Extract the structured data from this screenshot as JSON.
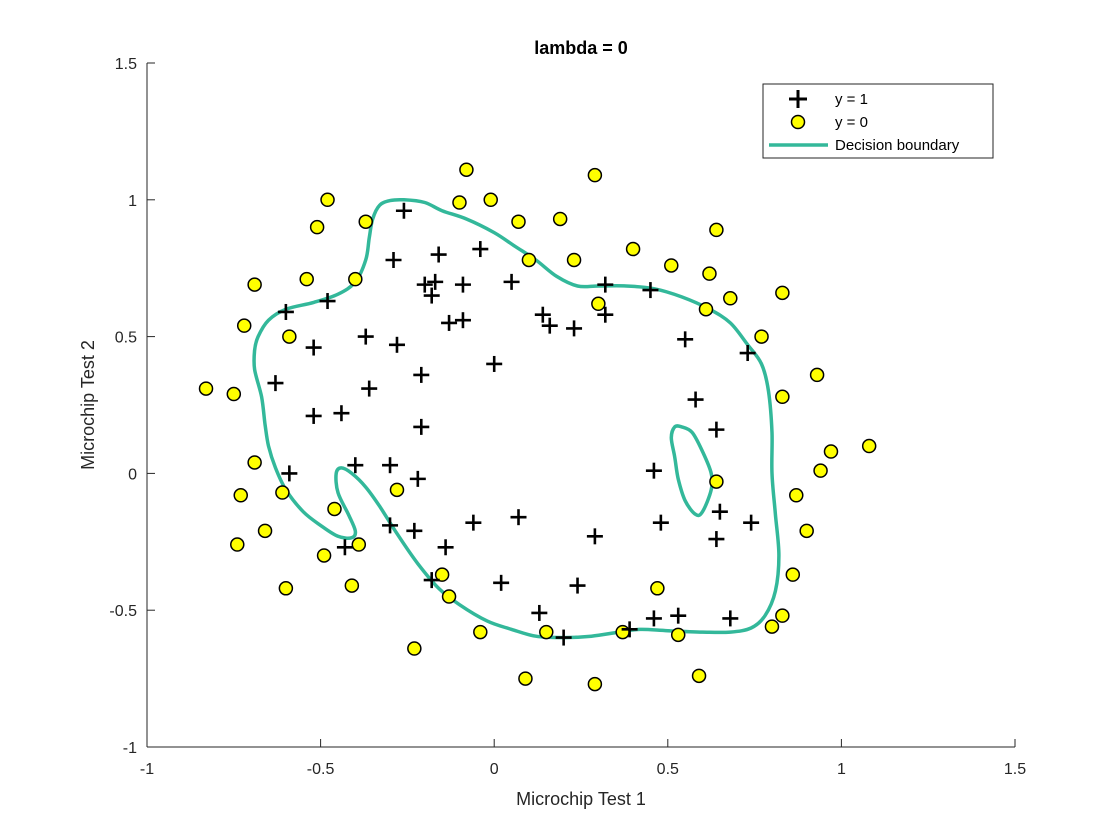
{
  "chart_data": {
    "type": "scatter",
    "title": "lambda = 0",
    "xlabel": "Microchip Test 1",
    "ylabel": "Microchip Test 2",
    "xlim": [
      -1,
      1.5
    ],
    "ylim": [
      -1,
      1.5
    ],
    "xticks": [
      -1,
      -0.5,
      0,
      0.5,
      1,
      1.5
    ],
    "yticks": [
      -1,
      -0.5,
      0,
      0.5,
      1,
      1.5
    ],
    "xtick_labels": [
      "-1",
      "-0.5",
      "0",
      "0.5",
      "1",
      "1.5"
    ],
    "ytick_labels": [
      "-1",
      "-0.5",
      "0",
      "0.5",
      "1",
      "1.5"
    ],
    "grid": false,
    "legend_position": "top-right",
    "legend": [
      "y = 1",
      "y = 0",
      "Decision boundary"
    ],
    "colors": {
      "positive": "#000000",
      "negative": "#ffff00",
      "negative_edge": "#000000",
      "boundary": "#33b89a"
    },
    "series": [
      {
        "name": "y = 1",
        "marker": "plus",
        "points": [
          [
            -0.26,
            0.96
          ],
          [
            -0.29,
            0.78
          ],
          [
            -0.16,
            0.8
          ],
          [
            -0.04,
            0.82
          ],
          [
            -0.2,
            0.69
          ],
          [
            -0.17,
            0.7
          ],
          [
            -0.18,
            0.65
          ],
          [
            -0.09,
            0.69
          ],
          [
            0.05,
            0.7
          ],
          [
            -0.6,
            0.59
          ],
          [
            -0.48,
            0.63
          ],
          [
            -0.13,
            0.55
          ],
          [
            -0.09,
            0.56
          ],
          [
            0.14,
            0.58
          ],
          [
            0.16,
            0.54
          ],
          [
            0.23,
            0.53
          ],
          [
            0.32,
            0.69
          ],
          [
            0.32,
            0.58
          ],
          [
            0.45,
            0.67
          ],
          [
            -0.37,
            0.5
          ],
          [
            -0.28,
            0.47
          ],
          [
            -0.52,
            0.46
          ],
          [
            0.55,
            0.49
          ],
          [
            0.73,
            0.44
          ],
          [
            -0.63,
            0.33
          ],
          [
            -0.21,
            0.36
          ],
          [
            0.0,
            0.4
          ],
          [
            -0.36,
            0.31
          ],
          [
            -0.52,
            0.21
          ],
          [
            -0.44,
            0.22
          ],
          [
            -0.21,
            0.17
          ],
          [
            0.58,
            0.27
          ],
          [
            0.64,
            0.16
          ],
          [
            -0.59,
            0.0
          ],
          [
            -0.4,
            0.03
          ],
          [
            -0.3,
            0.03
          ],
          [
            -0.22,
            -0.02
          ],
          [
            0.46,
            0.01
          ],
          [
            -0.3,
            -0.19
          ],
          [
            -0.23,
            -0.21
          ],
          [
            -0.06,
            -0.18
          ],
          [
            0.07,
            -0.16
          ],
          [
            0.48,
            -0.18
          ],
          [
            0.65,
            -0.14
          ],
          [
            0.74,
            -0.18
          ],
          [
            -0.14,
            -0.27
          ],
          [
            0.29,
            -0.23
          ],
          [
            0.64,
            -0.24
          ],
          [
            -0.43,
            -0.27
          ],
          [
            -0.18,
            -0.39
          ],
          [
            0.02,
            -0.4
          ],
          [
            0.24,
            -0.41
          ],
          [
            0.13,
            -0.51
          ],
          [
            0.46,
            -0.53
          ],
          [
            0.53,
            -0.52
          ],
          [
            0.68,
            -0.53
          ],
          [
            0.39,
            -0.57
          ],
          [
            0.2,
            -0.6
          ]
        ]
      },
      {
        "name": "y = 0",
        "marker": "circle",
        "points": [
          [
            -0.08,
            1.11
          ],
          [
            0.29,
            1.09
          ],
          [
            -0.48,
            1.0
          ],
          [
            -0.1,
            0.99
          ],
          [
            -0.01,
            1.0
          ],
          [
            -0.51,
            0.9
          ],
          [
            -0.37,
            0.92
          ],
          [
            0.07,
            0.92
          ],
          [
            0.19,
            0.93
          ],
          [
            0.64,
            0.89
          ],
          [
            0.4,
            0.82
          ],
          [
            0.1,
            0.78
          ],
          [
            0.23,
            0.78
          ],
          [
            0.51,
            0.76
          ],
          [
            0.62,
            0.73
          ],
          [
            -0.54,
            0.71
          ],
          [
            -0.4,
            0.71
          ],
          [
            -0.69,
            0.69
          ],
          [
            0.3,
            0.62
          ],
          [
            0.61,
            0.6
          ],
          [
            0.68,
            0.64
          ],
          [
            0.83,
            0.66
          ],
          [
            -0.72,
            0.54
          ],
          [
            -0.59,
            0.5
          ],
          [
            0.77,
            0.5
          ],
          [
            -0.83,
            0.31
          ],
          [
            -0.75,
            0.29
          ],
          [
            0.93,
            0.36
          ],
          [
            0.83,
            0.28
          ],
          [
            0.97,
            0.08
          ],
          [
            1.08,
            0.1
          ],
          [
            -0.69,
            0.04
          ],
          [
            0.94,
            0.01
          ],
          [
            -0.73,
            -0.08
          ],
          [
            -0.61,
            -0.07
          ],
          [
            -0.28,
            -0.06
          ],
          [
            0.64,
            -0.03
          ],
          [
            0.87,
            -0.08
          ],
          [
            -0.46,
            -0.13
          ],
          [
            0.9,
            -0.21
          ],
          [
            -0.66,
            -0.21
          ],
          [
            -0.74,
            -0.26
          ],
          [
            -0.49,
            -0.3
          ],
          [
            -0.39,
            -0.26
          ],
          [
            -0.15,
            -0.37
          ],
          [
            0.86,
            -0.37
          ],
          [
            -0.6,
            -0.42
          ],
          [
            -0.41,
            -0.41
          ],
          [
            -0.13,
            -0.45
          ],
          [
            0.47,
            -0.42
          ],
          [
            0.83,
            -0.52
          ],
          [
            0.8,
            -0.56
          ],
          [
            -0.04,
            -0.58
          ],
          [
            0.15,
            -0.58
          ],
          [
            0.37,
            -0.58
          ],
          [
            0.53,
            -0.59
          ],
          [
            -0.23,
            -0.64
          ],
          [
            0.59,
            -0.74
          ],
          [
            0.09,
            -0.75
          ],
          [
            0.29,
            -0.77
          ]
        ]
      },
      {
        "name": "Decision boundary",
        "marker": "line",
        "curves": [
          [
            [
              -0.35,
              0.93
            ],
            [
              -0.33,
              0.98
            ],
            [
              -0.3,
              0.997
            ],
            [
              -0.26,
              1.0
            ],
            [
              -0.2,
              0.99
            ],
            [
              -0.15,
              0.96
            ],
            [
              -0.08,
              0.93
            ],
            [
              0.0,
              0.88
            ],
            [
              0.06,
              0.83
            ],
            [
              0.12,
              0.78
            ],
            [
              0.18,
              0.72
            ],
            [
              0.24,
              0.685
            ],
            [
              0.3,
              0.685
            ],
            [
              0.38,
              0.685
            ],
            [
              0.46,
              0.675
            ],
            [
              0.54,
              0.645
            ],
            [
              0.62,
              0.6
            ],
            [
              0.68,
              0.55
            ],
            [
              0.73,
              0.47
            ],
            [
              0.77,
              0.4
            ],
            [
              0.79,
              0.3
            ],
            [
              0.8,
              0.15
            ],
            [
              0.8,
              0.0
            ],
            [
              0.81,
              -0.15
            ],
            [
              0.82,
              -0.3
            ],
            [
              0.81,
              -0.43
            ],
            [
              0.78,
              -0.52
            ],
            [
              0.74,
              -0.565
            ],
            [
              0.68,
              -0.58
            ],
            [
              0.6,
              -0.58
            ],
            [
              0.5,
              -0.575
            ],
            [
              0.42,
              -0.57
            ],
            [
              0.36,
              -0.58
            ],
            [
              0.28,
              -0.595
            ],
            [
              0.2,
              -0.6
            ],
            [
              0.12,
              -0.595
            ],
            [
              0.05,
              -0.57
            ],
            [
              -0.02,
              -0.54
            ],
            [
              -0.1,
              -0.48
            ],
            [
              -0.16,
              -0.42
            ],
            [
              -0.22,
              -0.33
            ],
            [
              -0.28,
              -0.22
            ],
            [
              -0.33,
              -0.12
            ],
            [
              -0.37,
              -0.05
            ],
            [
              -0.41,
              0.0
            ],
            [
              -0.44,
              0.02
            ],
            [
              -0.455,
              0.0
            ],
            [
              -0.45,
              -0.07
            ],
            [
              -0.42,
              -0.15
            ],
            [
              -0.4,
              -0.21
            ],
            [
              -0.41,
              -0.235
            ],
            [
              -0.45,
              -0.23
            ],
            [
              -0.5,
              -0.19
            ],
            [
              -0.55,
              -0.14
            ],
            [
              -0.6,
              -0.06
            ],
            [
              -0.63,
              0.02
            ],
            [
              -0.65,
              0.1
            ],
            [
              -0.66,
              0.18
            ],
            [
              -0.67,
              0.28
            ],
            [
              -0.69,
              0.38
            ],
            [
              -0.69,
              0.45
            ],
            [
              -0.68,
              0.5
            ],
            [
              -0.65,
              0.56
            ],
            [
              -0.6,
              0.6
            ],
            [
              -0.52,
              0.625
            ],
            [
              -0.45,
              0.655
            ],
            [
              -0.4,
              0.7
            ],
            [
              -0.37,
              0.78
            ],
            [
              -0.36,
              0.86
            ],
            [
              -0.35,
              0.93
            ]
          ],
          [
            [
              0.54,
              0.17
            ],
            [
              0.57,
              0.15
            ],
            [
              0.6,
              0.08
            ],
            [
              0.625,
              0.0
            ],
            [
              0.625,
              -0.06
            ],
            [
              0.6,
              -0.14
            ],
            [
              0.58,
              -0.15
            ],
            [
              0.55,
              -0.1
            ],
            [
              0.53,
              -0.02
            ],
            [
              0.52,
              0.06
            ],
            [
              0.51,
              0.13
            ],
            [
              0.52,
              0.17
            ],
            [
              0.54,
              0.17
            ]
          ]
        ]
      }
    ]
  }
}
